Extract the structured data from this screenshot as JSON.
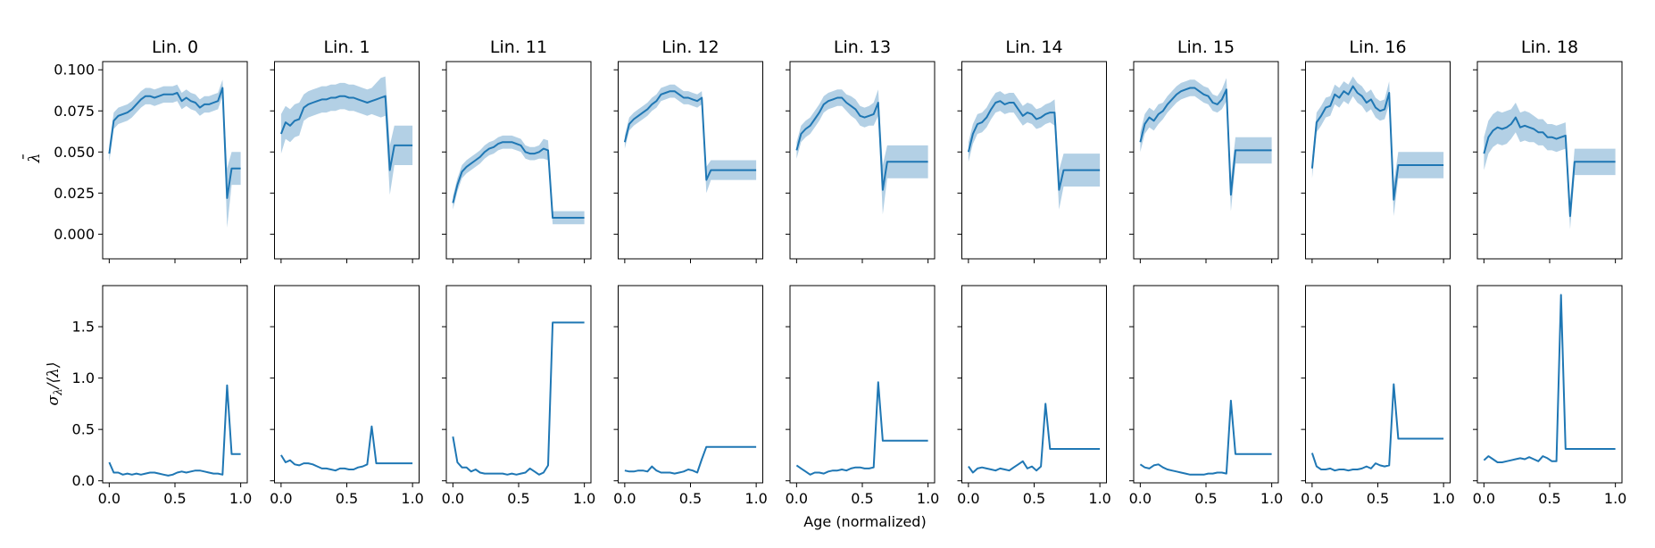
{
  "figure": {
    "xlabel": "Age (normalized)",
    "ylabel_top": {
      "mark": "λ",
      "accent": "¯"
    },
    "ylabel_bottom": {
      "sigma": "σ",
      "sub": "λ",
      "mid": "/⟨",
      "lam": "λ",
      "close": "⟩"
    },
    "colors": {
      "line": "#1f77b4",
      "band": "#a6c8e0",
      "axis": "#000000"
    }
  },
  "chart_data": {
    "type": "line",
    "layout": "2 rows x 9 columns of small multiples; top row shows mean with shaded band, bottom row shows relative spread",
    "x": [
      0.0,
      0.0345,
      0.069,
      0.1034,
      0.1379,
      0.1724,
      0.2069,
      0.2414,
      0.2759,
      0.3103,
      0.3448,
      0.3793,
      0.4138,
      0.4483,
      0.4828,
      0.5172,
      0.5517,
      0.5862,
      0.6207,
      0.6552,
      0.6897,
      0.7241,
      0.7586,
      0.7931,
      0.8276,
      0.8621,
      0.8966,
      0.931,
      0.9655,
      1.0
    ],
    "xlim": [
      -0.05,
      1.05
    ],
    "xticks": [
      "0.0",
      "0.5",
      "1.0"
    ],
    "top": {
      "ylim": [
        -0.015,
        0.105
      ],
      "yticks": [
        0.0,
        0.025,
        0.05,
        0.075,
        0.1
      ],
      "ytick_labels": [
        "0.000",
        "0.025",
        "0.050",
        "0.075",
        "0.100"
      ]
    },
    "bottom": {
      "ylim": [
        -0.02,
        1.9
      ],
      "yticks": [
        0.0,
        0.5,
        1.0,
        1.5
      ],
      "ytick_labels": [
        "0.0",
        "0.5",
        "1.0",
        "1.5"
      ]
    },
    "panels": [
      {
        "title": "Lin. 0",
        "mean": [
          0.049,
          0.069,
          0.072,
          0.073,
          0.074,
          0.076,
          0.079,
          0.082,
          0.084,
          0.084,
          0.083,
          0.084,
          0.085,
          0.085,
          0.085,
          0.086,
          0.081,
          0.083,
          0.081,
          0.08,
          0.077,
          0.079,
          0.079,
          0.08,
          0.081,
          0.089,
          0.022,
          0.04,
          0.04,
          0.04
        ],
        "band": [
          0.005,
          0.005,
          0.005,
          0.005,
          0.005,
          0.005,
          0.005,
          0.005,
          0.005,
          0.005,
          0.005,
          0.005,
          0.005,
          0.005,
          0.005,
          0.005,
          0.005,
          0.005,
          0.005,
          0.005,
          0.005,
          0.005,
          0.005,
          0.005,
          0.005,
          0.005,
          0.018,
          0.01,
          0.01,
          0.01
        ],
        "spread": [
          0.18,
          0.08,
          0.08,
          0.06,
          0.07,
          0.06,
          0.07,
          0.06,
          0.07,
          0.08,
          0.08,
          0.07,
          0.06,
          0.05,
          0.06,
          0.08,
          0.09,
          0.08,
          0.09,
          0.1,
          0.1,
          0.09,
          0.08,
          0.07,
          0.07,
          0.06,
          0.93,
          0.26,
          0.26,
          0.26
        ]
      },
      {
        "title": "Lin. 1",
        "mean": [
          0.061,
          0.068,
          0.066,
          0.069,
          0.07,
          0.077,
          0.079,
          0.08,
          0.081,
          0.082,
          0.082,
          0.083,
          0.083,
          0.084,
          0.084,
          0.083,
          0.083,
          0.082,
          0.081,
          0.08,
          0.081,
          0.082,
          0.083,
          0.084,
          0.039,
          0.054,
          0.054,
          0.054,
          0.054,
          0.054
        ],
        "band": [
          0.012,
          0.01,
          0.01,
          0.01,
          0.01,
          0.008,
          0.008,
          0.008,
          0.008,
          0.008,
          0.008,
          0.008,
          0.008,
          0.008,
          0.008,
          0.008,
          0.008,
          0.008,
          0.008,
          0.008,
          0.008,
          0.01,
          0.012,
          0.012,
          0.015,
          0.012,
          0.012,
          0.012,
          0.012,
          0.012
        ],
        "spread": [
          0.25,
          0.18,
          0.2,
          0.16,
          0.15,
          0.17,
          0.17,
          0.16,
          0.14,
          0.12,
          0.12,
          0.11,
          0.1,
          0.12,
          0.12,
          0.11,
          0.11,
          0.13,
          0.14,
          0.16,
          0.53,
          0.17,
          0.17,
          0.17,
          0.17,
          0.17,
          0.17,
          0.17,
          0.17,
          0.17
        ]
      },
      {
        "title": "Lin. 11",
        "mean": [
          0.019,
          0.03,
          0.038,
          0.041,
          0.043,
          0.045,
          0.047,
          0.05,
          0.052,
          0.053,
          0.055,
          0.056,
          0.056,
          0.056,
          0.055,
          0.054,
          0.05,
          0.049,
          0.049,
          0.05,
          0.052,
          0.051,
          0.01,
          0.01,
          0.01,
          0.01,
          0.01,
          0.01,
          0.01,
          0.01
        ],
        "band": [
          0.004,
          0.004,
          0.004,
          0.004,
          0.004,
          0.004,
          0.004,
          0.004,
          0.004,
          0.004,
          0.004,
          0.004,
          0.004,
          0.004,
          0.004,
          0.004,
          0.004,
          0.004,
          0.004,
          0.004,
          0.006,
          0.006,
          0.004,
          0.004,
          0.004,
          0.004,
          0.004,
          0.004,
          0.004,
          0.004
        ],
        "spread": [
          0.43,
          0.18,
          0.13,
          0.13,
          0.09,
          0.11,
          0.08,
          0.07,
          0.07,
          0.07,
          0.07,
          0.07,
          0.06,
          0.07,
          0.06,
          0.07,
          0.08,
          0.12,
          0.09,
          0.06,
          0.08,
          0.15,
          1.54,
          1.54,
          1.54,
          1.54,
          1.54,
          1.54,
          1.54,
          1.54
        ]
      },
      {
        "title": "Lin. 12",
        "mean": [
          0.056,
          0.067,
          0.07,
          0.072,
          0.074,
          0.076,
          0.079,
          0.081,
          0.085,
          0.086,
          0.087,
          0.087,
          0.085,
          0.083,
          0.083,
          0.082,
          0.081,
          0.083,
          0.033,
          0.039,
          0.039,
          0.039,
          0.039,
          0.039,
          0.039,
          0.039,
          0.039,
          0.039,
          0.039,
          0.039
        ],
        "band": [
          0.004,
          0.004,
          0.004,
          0.004,
          0.004,
          0.004,
          0.004,
          0.004,
          0.004,
          0.004,
          0.004,
          0.004,
          0.004,
          0.004,
          0.004,
          0.004,
          0.004,
          0.004,
          0.008,
          0.006,
          0.006,
          0.006,
          0.006,
          0.006,
          0.006,
          0.006,
          0.006,
          0.006,
          0.006,
          0.006
        ],
        "spread": [
          0.1,
          0.09,
          0.09,
          0.1,
          0.1,
          0.09,
          0.14,
          0.1,
          0.08,
          0.08,
          0.08,
          0.07,
          0.08,
          0.09,
          0.11,
          0.1,
          0.08,
          0.21,
          0.33,
          0.33,
          0.33,
          0.33,
          0.33,
          0.33,
          0.33,
          0.33,
          0.33,
          0.33,
          0.33,
          0.33
        ]
      },
      {
        "title": "Lin. 13",
        "mean": [
          0.051,
          0.061,
          0.064,
          0.066,
          0.07,
          0.074,
          0.079,
          0.081,
          0.082,
          0.083,
          0.083,
          0.08,
          0.078,
          0.076,
          0.072,
          0.071,
          0.072,
          0.073,
          0.08,
          0.027,
          0.044,
          0.044,
          0.044,
          0.044,
          0.044,
          0.044,
          0.044,
          0.044,
          0.044,
          0.044
        ],
        "band": [
          0.005,
          0.005,
          0.005,
          0.005,
          0.005,
          0.005,
          0.005,
          0.005,
          0.005,
          0.005,
          0.005,
          0.005,
          0.006,
          0.006,
          0.006,
          0.006,
          0.006,
          0.007,
          0.008,
          0.015,
          0.01,
          0.01,
          0.01,
          0.01,
          0.01,
          0.01,
          0.01,
          0.01,
          0.01,
          0.01
        ],
        "spread": [
          0.15,
          0.12,
          0.09,
          0.06,
          0.08,
          0.08,
          0.07,
          0.09,
          0.1,
          0.1,
          0.11,
          0.1,
          0.12,
          0.13,
          0.13,
          0.12,
          0.12,
          0.13,
          0.96,
          0.39,
          0.39,
          0.39,
          0.39,
          0.39,
          0.39,
          0.39,
          0.39,
          0.39,
          0.39,
          0.39
        ]
      },
      {
        "title": "Lin. 14",
        "mean": [
          0.05,
          0.061,
          0.067,
          0.068,
          0.071,
          0.076,
          0.08,
          0.081,
          0.079,
          0.08,
          0.08,
          0.076,
          0.072,
          0.074,
          0.073,
          0.07,
          0.071,
          0.073,
          0.074,
          0.074,
          0.027,
          0.039,
          0.039,
          0.039,
          0.039,
          0.039,
          0.039,
          0.039,
          0.039,
          0.039
        ],
        "band": [
          0.006,
          0.006,
          0.006,
          0.006,
          0.006,
          0.006,
          0.006,
          0.006,
          0.006,
          0.006,
          0.006,
          0.006,
          0.006,
          0.006,
          0.006,
          0.006,
          0.006,
          0.006,
          0.006,
          0.008,
          0.012,
          0.01,
          0.01,
          0.01,
          0.01,
          0.01,
          0.01,
          0.01,
          0.01,
          0.01
        ],
        "spread": [
          0.14,
          0.08,
          0.12,
          0.13,
          0.12,
          0.11,
          0.1,
          0.12,
          0.11,
          0.1,
          0.13,
          0.16,
          0.19,
          0.12,
          0.14,
          0.1,
          0.14,
          0.75,
          0.31,
          0.31,
          0.31,
          0.31,
          0.31,
          0.31,
          0.31,
          0.31,
          0.31,
          0.31,
          0.31,
          0.31
        ]
      },
      {
        "title": "Lin. 15",
        "mean": [
          0.056,
          0.067,
          0.071,
          0.069,
          0.073,
          0.075,
          0.079,
          0.082,
          0.085,
          0.087,
          0.088,
          0.089,
          0.089,
          0.087,
          0.085,
          0.084,
          0.08,
          0.079,
          0.082,
          0.088,
          0.024,
          0.051,
          0.051,
          0.051,
          0.051,
          0.051,
          0.051,
          0.051,
          0.051,
          0.051
        ],
        "band": [
          0.006,
          0.006,
          0.006,
          0.006,
          0.006,
          0.005,
          0.005,
          0.005,
          0.005,
          0.005,
          0.005,
          0.005,
          0.005,
          0.005,
          0.005,
          0.005,
          0.005,
          0.005,
          0.006,
          0.007,
          0.01,
          0.008,
          0.008,
          0.008,
          0.008,
          0.008,
          0.008,
          0.008,
          0.008,
          0.008
        ],
        "spread": [
          0.16,
          0.13,
          0.12,
          0.15,
          0.16,
          0.13,
          0.11,
          0.1,
          0.09,
          0.08,
          0.07,
          0.06,
          0.06,
          0.06,
          0.06,
          0.07,
          0.07,
          0.08,
          0.08,
          0.07,
          0.78,
          0.26,
          0.26,
          0.26,
          0.26,
          0.26,
          0.26,
          0.26,
          0.26,
          0.26
        ]
      },
      {
        "title": "Lin. 16",
        "mean": [
          0.04,
          0.068,
          0.072,
          0.077,
          0.078,
          0.085,
          0.083,
          0.087,
          0.085,
          0.09,
          0.086,
          0.084,
          0.08,
          0.082,
          0.077,
          0.075,
          0.076,
          0.086,
          0.021,
          0.042,
          0.042,
          0.042,
          0.042,
          0.042,
          0.042,
          0.042,
          0.042,
          0.042,
          0.042,
          0.042
        ],
        "band": [
          0.006,
          0.006,
          0.006,
          0.006,
          0.006,
          0.006,
          0.006,
          0.006,
          0.006,
          0.006,
          0.006,
          0.006,
          0.006,
          0.006,
          0.006,
          0.006,
          0.006,
          0.007,
          0.01,
          0.008,
          0.008,
          0.008,
          0.008,
          0.008,
          0.008,
          0.008,
          0.008,
          0.008,
          0.008,
          0.008
        ],
        "spread": [
          0.27,
          0.14,
          0.11,
          0.11,
          0.12,
          0.1,
          0.11,
          0.11,
          0.1,
          0.11,
          0.11,
          0.12,
          0.14,
          0.12,
          0.17,
          0.15,
          0.14,
          0.15,
          0.94,
          0.41,
          0.41,
          0.41,
          0.41,
          0.41,
          0.41,
          0.41,
          0.41,
          0.41,
          0.41,
          0.41
        ]
      },
      {
        "title": "Lin. 18",
        "mean": [
          0.049,
          0.059,
          0.063,
          0.065,
          0.064,
          0.065,
          0.067,
          0.071,
          0.065,
          0.066,
          0.065,
          0.064,
          0.062,
          0.062,
          0.059,
          0.059,
          0.058,
          0.059,
          0.06,
          0.011,
          0.044,
          0.044,
          0.044,
          0.044,
          0.044,
          0.044,
          0.044,
          0.044,
          0.044,
          0.044
        ],
        "band": [
          0.01,
          0.01,
          0.01,
          0.01,
          0.01,
          0.01,
          0.009,
          0.009,
          0.009,
          0.009,
          0.009,
          0.008,
          0.008,
          0.008,
          0.008,
          0.008,
          0.008,
          0.008,
          0.008,
          0.008,
          0.008,
          0.008,
          0.008,
          0.008,
          0.008,
          0.008,
          0.008,
          0.008,
          0.008,
          0.008
        ],
        "spread": [
          0.2,
          0.24,
          0.21,
          0.18,
          0.18,
          0.19,
          0.2,
          0.21,
          0.22,
          0.21,
          0.23,
          0.21,
          0.19,
          0.24,
          0.22,
          0.19,
          0.19,
          1.81,
          0.31,
          0.31,
          0.31,
          0.31,
          0.31,
          0.31,
          0.31,
          0.31,
          0.31,
          0.31,
          0.31,
          0.31
        ]
      }
    ]
  }
}
